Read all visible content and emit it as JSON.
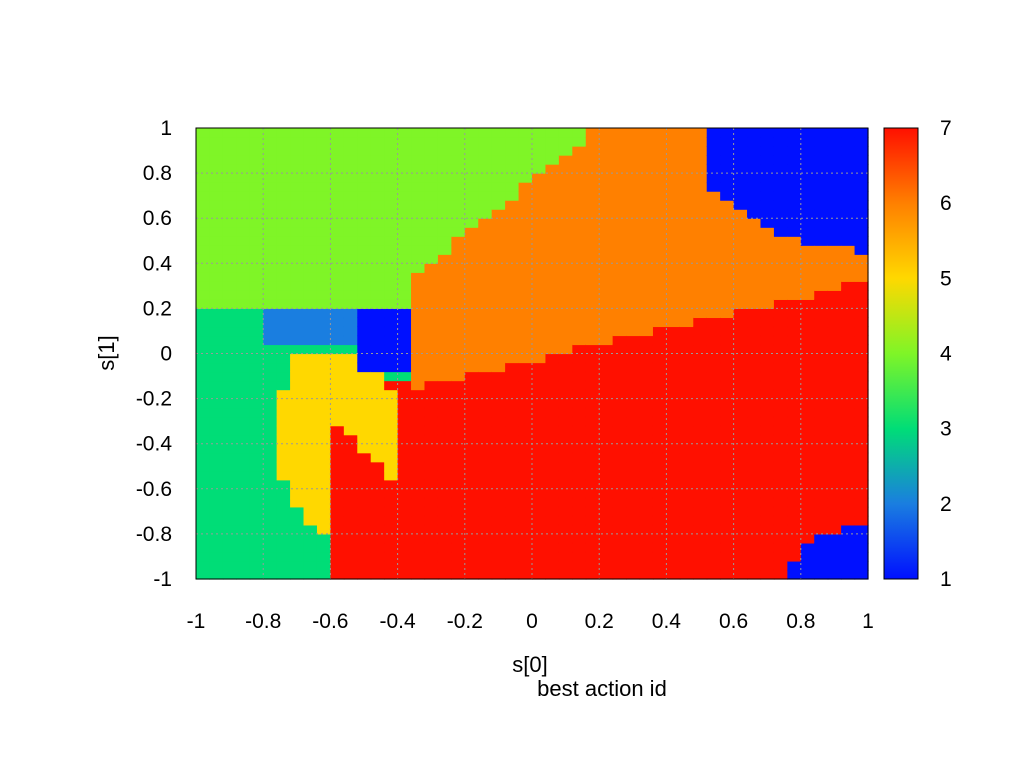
{
  "chart_data": {
    "type": "heatmap",
    "title": "",
    "xlabel": "s[0]",
    "ylabel": "s[1]",
    "caption": "best action id",
    "xlim": [
      -1,
      1
    ],
    "ylim": [
      -1,
      1
    ],
    "xticks": [
      "-1",
      "-0.8",
      "-0.6",
      "-0.4",
      "-0.2",
      "0",
      "0.2",
      "0.4",
      "0.6",
      "0.8",
      "1"
    ],
    "yticks": [
      "-1",
      "-0.8",
      "-0.6",
      "-0.4",
      "-0.2",
      "0",
      "0.2",
      "0.4",
      "0.6",
      "0.8",
      "1"
    ],
    "grid": true,
    "colorbar": {
      "range": [
        1,
        7
      ],
      "ticks": [
        "1",
        "2",
        "3",
        "4",
        "5",
        "6",
        "7"
      ],
      "colors": {
        "1": "#0010ff",
        "2": "#1a7ee0",
        "3": "#00dd77",
        "4": "#7ff527",
        "5": "#ffd800",
        "6": "#ff8000",
        "7": "#ff1000"
      }
    },
    "grid_resolution": 0.04,
    "regions": [
      {
        "action": 4,
        "description_region": "upper-left",
        "approx_center": [
          -0.7,
          0.7
        ]
      },
      {
        "action": 3,
        "description_region": "left",
        "approx_center": [
          -0.9,
          -0.3
        ]
      },
      {
        "action": 2,
        "description_region": "small strip",
        "approx_center": [
          -0.72,
          0.15
        ]
      },
      {
        "action": 1,
        "description_region": "small pocket",
        "approx_center": [
          -0.45,
          0.12
        ]
      },
      {
        "action": 5,
        "description_region": "left-center",
        "approx_center": [
          -0.55,
          -0.4
        ]
      },
      {
        "action": 6,
        "description_region": "upper-center",
        "approx_center": [
          0.3,
          0.55
        ]
      },
      {
        "action": 7,
        "description_region": "lower-right",
        "approx_center": [
          0.3,
          -0.5
        ]
      },
      {
        "action": 1,
        "description_region": "top-right corner",
        "approx_center": [
          0.85,
          0.75
        ]
      },
      {
        "action": 1,
        "description_region": "bottom-right corner",
        "approx_center": [
          0.95,
          -0.92
        ]
      }
    ]
  }
}
